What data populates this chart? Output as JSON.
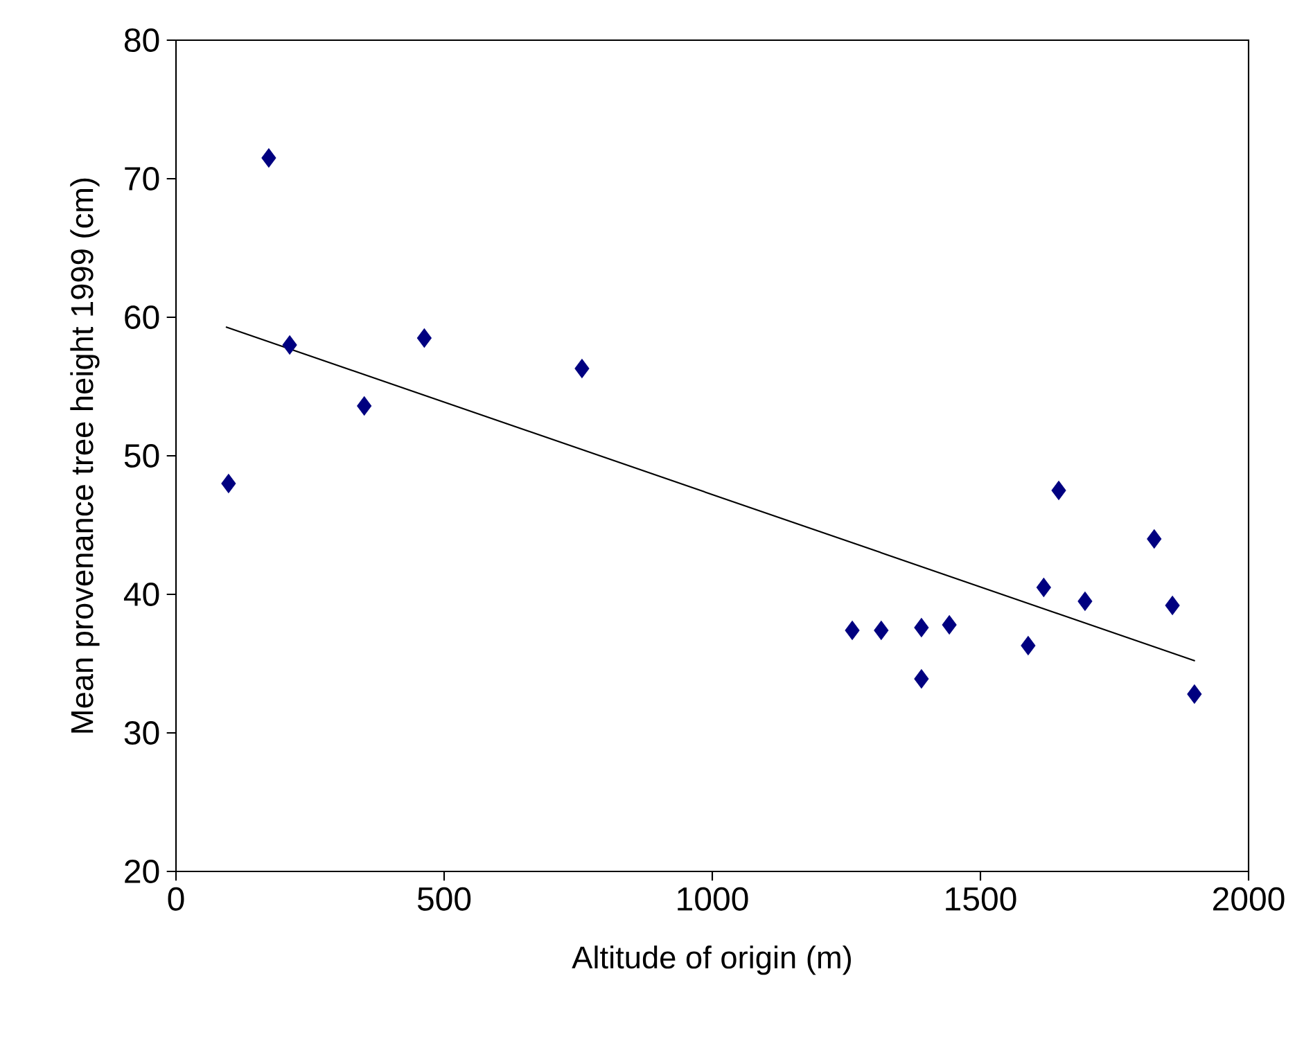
{
  "chart_data": {
    "type": "scatter",
    "xlabel": "Altitude of origin (m)",
    "ylabel": "Mean provenance tree height 1999 (cm)",
    "xlim": [
      0,
      2000
    ],
    "ylim": [
      20,
      80
    ],
    "xticks": [
      0,
      500,
      1000,
      1500,
      2000
    ],
    "yticks": [
      20,
      30,
      40,
      50,
      60,
      70,
      80
    ],
    "grid": false,
    "series": [
      {
        "marker": "diamond",
        "color": "#000080",
        "x": [
          98,
          173,
          212,
          351,
          463,
          757,
          1261,
          1315,
          1390,
          1390,
          1442,
          1589,
          1618,
          1646,
          1695,
          1824,
          1858,
          1899
        ],
        "values": [
          48.0,
          71.5,
          58.0,
          53.6,
          58.5,
          56.3,
          37.4,
          37.4,
          37.6,
          33.9,
          37.8,
          36.3,
          40.5,
          47.5,
          39.5,
          44.0,
          39.2,
          32.8
        ]
      },
      {
        "type": "line",
        "color": "#000000",
        "x": [
          93,
          1900
        ],
        "values": [
          59.3,
          35.2
        ]
      }
    ]
  }
}
